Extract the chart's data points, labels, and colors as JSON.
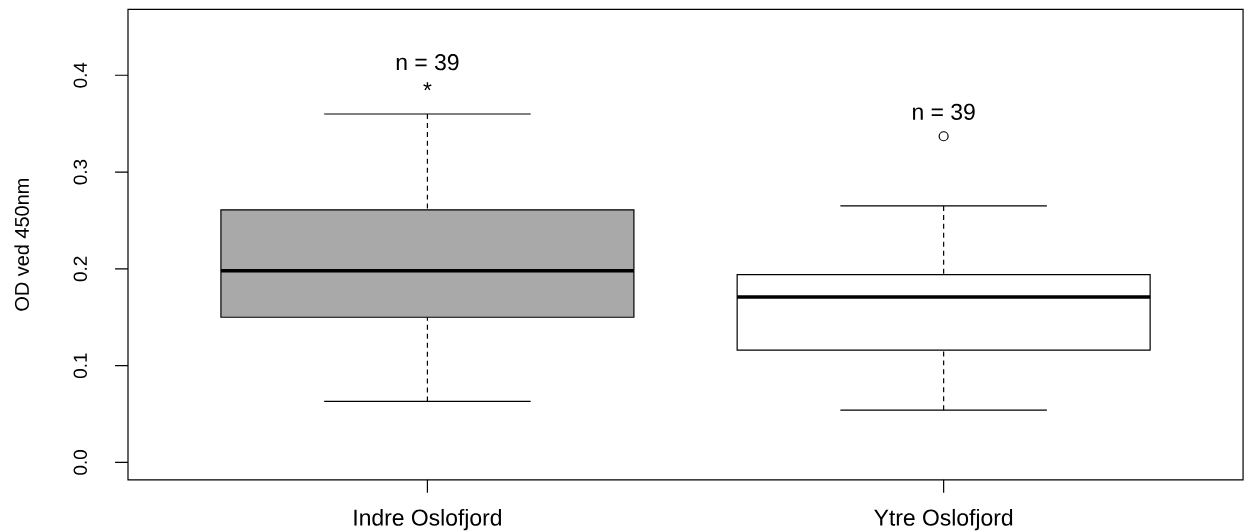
{
  "chart_data": {
    "type": "box",
    "ylabel": "OD ved 450nm",
    "categories": [
      "Indre Oslofjord",
      "Ytre Oslofjord"
    ],
    "boxes": [
      {
        "low": 0.063,
        "q1": 0.15,
        "median": 0.198,
        "q3": 0.261,
        "high": 0.36
      },
      {
        "low": 0.054,
        "q1": 0.116,
        "median": 0.171,
        "q3": 0.194,
        "high": 0.265,
        "outliers": [
          0.337
        ]
      }
    ],
    "colors": [
      "#a9a9a9",
      "#ffffff"
    ],
    "ylim": [
      -0.018,
      0.468
    ],
    "yticks": [
      {
        "value": 0,
        "label": "0.0"
      },
      0.1,
      0.2,
      0.3,
      0.4
    ],
    "annotations": [
      "n = 39",
      "*",
      "n = 39"
    ]
  }
}
